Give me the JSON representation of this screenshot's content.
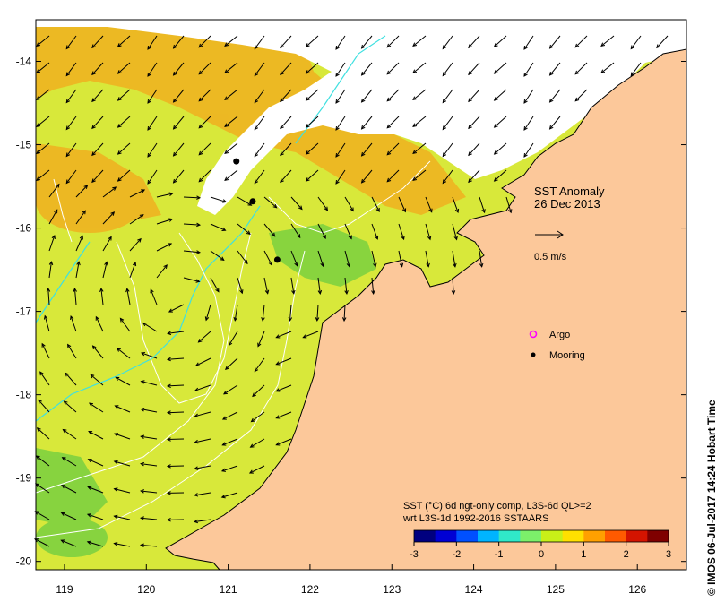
{
  "title": "SST Anomaly",
  "date": "26 Dec 2013",
  "axes": {
    "x_ticks": [
      "119",
      "120",
      "121",
      "122",
      "123",
      "124",
      "125",
      "126"
    ],
    "y_ticks": [
      "-14",
      "-15",
      "-16",
      "-17",
      "-18",
      "-19",
      "-20"
    ],
    "lon_range": [
      118.65,
      126.6
    ],
    "lat_range": [
      -20.1,
      -13.5
    ]
  },
  "legend": {
    "scale_label": "0.5 m/s",
    "argo_label": "Argo",
    "mooring_label": "Mooring"
  },
  "colorbar": {
    "caption_line1": "SST (°C) 6d ngt-only comp, L3S-6d QL>=2",
    "caption_line2": "wrt L3S-1d 1992-2016 SSTAARS",
    "ticks": [
      "-3",
      "-2",
      "-1",
      "0",
      "1",
      "2",
      "3"
    ],
    "range": [
      -3,
      3
    ],
    "colors": [
      "#00007f",
      "#0000d4",
      "#0050ff",
      "#00b4ff",
      "#30e8c8",
      "#7cf06a",
      "#c8f018",
      "#ffe000",
      "#ffa000",
      "#ff5a00",
      "#d41400",
      "#7f0000"
    ]
  },
  "credit": "© IMOS 06-Jul-2017 14:24 Hobart Time",
  "moorings": [
    {
      "lon": 121.1,
      "lat": -15.2
    },
    {
      "lon": 121.3,
      "lat": -15.68
    },
    {
      "lon": 121.6,
      "lat": -16.38
    }
  ],
  "colors": {
    "land": "#fcc89a",
    "no_data": "#ffffff",
    "sst_base": "#d8e83a",
    "sst_warm": "#f0b020",
    "sst_cool": "#7ad040",
    "contour": "#ffffff",
    "isobath": "#40e0e0"
  }
}
